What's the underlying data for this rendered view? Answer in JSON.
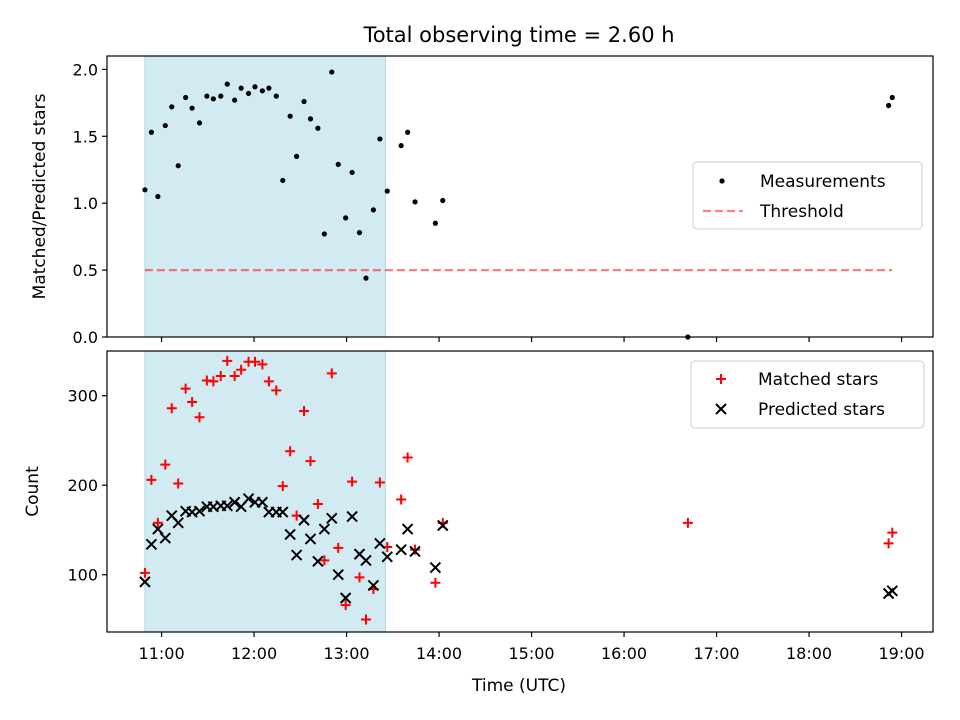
{
  "title": "Total observing time = 2.60 h",
  "colors": {
    "shade": "#add8e6",
    "threshold": "#ff0000",
    "measurements": "#000000",
    "matched": "#ff0000",
    "predicted": "#000000"
  },
  "x_ticks": [
    "11:00",
    "12:00",
    "13:00",
    "14:00",
    "15:00",
    "16:00",
    "17:00",
    "18:00",
    "19:00"
  ],
  "x_label": "Time (UTC)",
  "chart_data": [
    {
      "type": "scatter",
      "ylabel": "Matched/Predicted stars",
      "xlim": [
        10.41,
        19.34
      ],
      "ylim": [
        0.0,
        2.1
      ],
      "yticks": [
        "0.0",
        "0.5",
        "1.0",
        "1.5",
        "2.0"
      ],
      "shaded_span": [
        10.82,
        13.42
      ],
      "grid": false,
      "legend_position": "center-right",
      "legend": [
        "Measurements",
        "Threshold"
      ],
      "threshold": {
        "name": "Threshold",
        "y": 0.5,
        "x_range": [
          10.82,
          18.9
        ]
      },
      "series": [
        {
          "name": "Measurements",
          "points": [
            [
              10.82,
              1.1
            ],
            [
              10.89,
              1.53
            ],
            [
              10.96,
              1.05
            ],
            [
              11.04,
              1.58
            ],
            [
              11.11,
              1.72
            ],
            [
              11.18,
              1.28
            ],
            [
              11.26,
              1.79
            ],
            [
              11.33,
              1.71
            ],
            [
              11.41,
              1.6
            ],
            [
              11.49,
              1.8
            ],
            [
              11.56,
              1.78
            ],
            [
              11.64,
              1.8
            ],
            [
              11.71,
              1.89
            ],
            [
              11.79,
              1.77
            ],
            [
              11.86,
              1.86
            ],
            [
              11.94,
              1.82
            ],
            [
              12.01,
              1.87
            ],
            [
              12.09,
              1.84
            ],
            [
              12.16,
              1.86
            ],
            [
              12.24,
              1.8
            ],
            [
              12.31,
              1.17
            ],
            [
              12.39,
              1.65
            ],
            [
              12.46,
              1.35
            ],
            [
              12.54,
              1.76
            ],
            [
              12.61,
              1.63
            ],
            [
              12.69,
              1.56
            ],
            [
              12.76,
              0.77
            ],
            [
              12.84,
              1.98
            ],
            [
              12.91,
              1.29
            ],
            [
              12.99,
              0.89
            ],
            [
              13.06,
              1.23
            ],
            [
              13.14,
              0.78
            ],
            [
              13.21,
              0.44
            ],
            [
              13.29,
              0.95
            ],
            [
              13.36,
              1.48
            ],
            [
              13.44,
              1.09
            ],
            [
              13.59,
              1.43
            ],
            [
              13.66,
              1.53
            ],
            [
              13.74,
              1.01
            ],
            [
              13.96,
              0.85
            ],
            [
              14.04,
              1.02
            ],
            [
              16.69,
              0.0
            ],
            [
              18.86,
              1.73
            ],
            [
              18.9,
              1.79
            ]
          ]
        }
      ]
    },
    {
      "type": "scatter",
      "ylabel": "Count",
      "xlim": [
        10.41,
        19.34
      ],
      "ylim": [
        36,
        350
      ],
      "yticks": [
        "100",
        "200",
        "300"
      ],
      "shaded_span": [
        10.82,
        13.42
      ],
      "grid": false,
      "legend_position": "top-right",
      "legend": [
        "Matched stars",
        "Predicted stars"
      ],
      "series": [
        {
          "name": "Matched stars",
          "points": [
            [
              10.82,
              102
            ],
            [
              10.89,
              206
            ],
            [
              10.96,
              158
            ],
            [
              11.04,
              223
            ],
            [
              11.11,
              286
            ],
            [
              11.18,
              202
            ],
            [
              11.26,
              308
            ],
            [
              11.33,
              293
            ],
            [
              11.41,
              276
            ],
            [
              11.49,
              317
            ],
            [
              11.56,
              316
            ],
            [
              11.64,
              322
            ],
            [
              11.71,
              339
            ],
            [
              11.79,
              322
            ],
            [
              11.86,
              329
            ],
            [
              11.94,
              338
            ],
            [
              12.01,
              338
            ],
            [
              12.09,
              335
            ],
            [
              12.16,
              316
            ],
            [
              12.24,
              306
            ],
            [
              12.31,
              199
            ],
            [
              12.39,
              238
            ],
            [
              12.46,
              166
            ],
            [
              12.54,
              283
            ],
            [
              12.61,
              227
            ],
            [
              12.69,
              179
            ],
            [
              12.76,
              116
            ],
            [
              12.84,
              325
            ],
            [
              12.91,
              130
            ],
            [
              12.99,
              66
            ],
            [
              13.06,
              204
            ],
            [
              13.14,
              97
            ],
            [
              13.21,
              50
            ],
            [
              13.29,
              84
            ],
            [
              13.36,
              203
            ],
            [
              13.44,
              131
            ],
            [
              13.59,
              184
            ],
            [
              13.66,
              231
            ],
            [
              13.74,
              128
            ],
            [
              13.96,
              91
            ],
            [
              14.04,
              158
            ],
            [
              16.69,
              158
            ],
            [
              18.86,
              135
            ],
            [
              18.9,
              147
            ]
          ]
        },
        {
          "name": "Predicted stars",
          "points": [
            [
              10.82,
              92
            ],
            [
              10.89,
              134
            ],
            [
              10.96,
              151
            ],
            [
              11.04,
              141
            ],
            [
              11.11,
              166
            ],
            [
              11.18,
              158
            ],
            [
              11.26,
              171
            ],
            [
              11.33,
              170
            ],
            [
              11.41,
              171
            ],
            [
              11.49,
              176
            ],
            [
              11.56,
              176
            ],
            [
              11.64,
              177
            ],
            [
              11.71,
              177
            ],
            [
              11.79,
              181
            ],
            [
              11.86,
              176
            ],
            [
              11.94,
              185
            ],
            [
              12.01,
              181
            ],
            [
              12.09,
              181
            ],
            [
              12.16,
              170
            ],
            [
              12.24,
              170
            ],
            [
              12.31,
              170
            ],
            [
              12.39,
              145
            ],
            [
              12.46,
              122
            ],
            [
              12.54,
              161
            ],
            [
              12.61,
              140
            ],
            [
              12.69,
              115
            ],
            [
              12.76,
              151
            ],
            [
              12.84,
              163
            ],
            [
              12.91,
              100
            ],
            [
              12.99,
              74
            ],
            [
              13.06,
              165
            ],
            [
              13.14,
              123
            ],
            [
              13.21,
              116
            ],
            [
              13.29,
              88
            ],
            [
              13.36,
              135
            ],
            [
              13.44,
              120
            ],
            [
              13.59,
              128
            ],
            [
              13.66,
              151
            ],
            [
              13.74,
              126
            ],
            [
              13.96,
              108
            ],
            [
              14.04,
              155
            ],
            [
              18.86,
              79
            ],
            [
              18.9,
              82
            ]
          ]
        }
      ]
    }
  ]
}
